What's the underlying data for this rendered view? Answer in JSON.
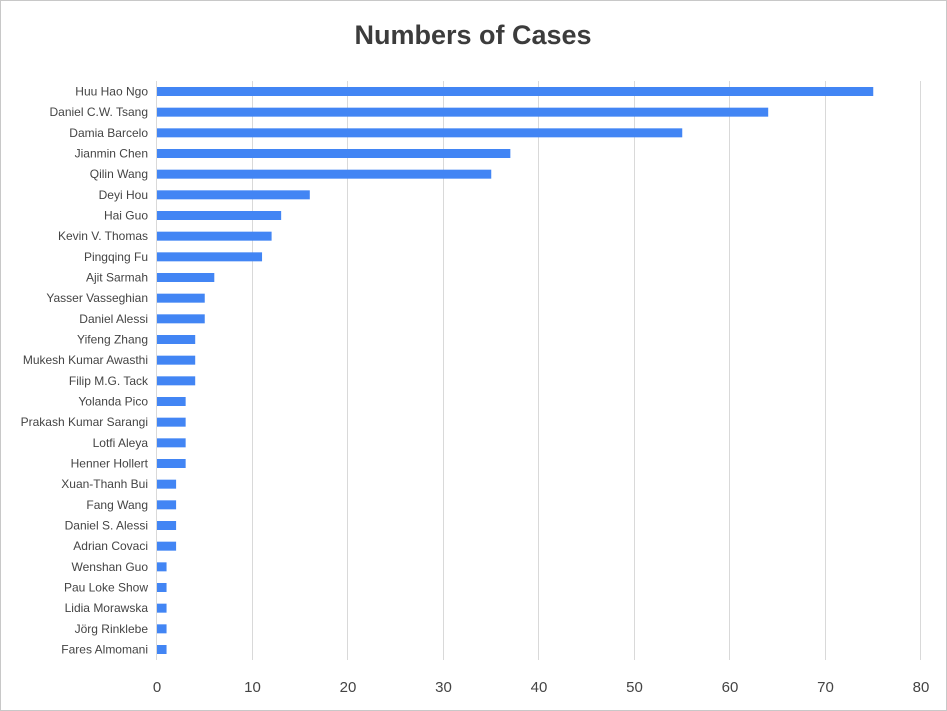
{
  "chart_data": {
    "type": "bar",
    "orientation": "horizontal",
    "title": "Numbers of Cases",
    "xlabel": "",
    "ylabel": "",
    "xlim": [
      0,
      80
    ],
    "x_ticks": [
      "0",
      "10",
      "20",
      "30",
      "40",
      "50",
      "60",
      "70",
      "80"
    ],
    "grid": true,
    "legend": "none",
    "color": "#4285f4",
    "categories": [
      "Huu Hao Ngo",
      "Daniel C.W. Tsang",
      "Damia Barcelo",
      "Jianmin Chen",
      "Qilin Wang",
      "Deyi Hou",
      "Hai Guo",
      "Kevin V. Thomas",
      "Pingqing Fu",
      "Ajit Sarmah",
      "Yasser Vasseghian",
      "Daniel Alessi",
      "Yifeng Zhang",
      "Mukesh Kumar Awasthi",
      "Filip M.G. Tack",
      "Yolanda Pico",
      "Prakash Kumar Sarangi",
      "Lotfi Aleya",
      "Henner Hollert",
      "Xuan-Thanh Bui",
      "Fang Wang",
      "Daniel S. Alessi",
      "Adrian Covaci",
      "Wenshan Guo",
      "Pau Loke Show",
      "Lidia Morawska",
      "Jörg Rinklebe",
      "Fares Almomani"
    ],
    "values": [
      75,
      64,
      55,
      37,
      35,
      16,
      13,
      12,
      11,
      6,
      5,
      5,
      4,
      4,
      4,
      3,
      3,
      3,
      3,
      2,
      2,
      2,
      2,
      1,
      1,
      1,
      1,
      1
    ]
  }
}
